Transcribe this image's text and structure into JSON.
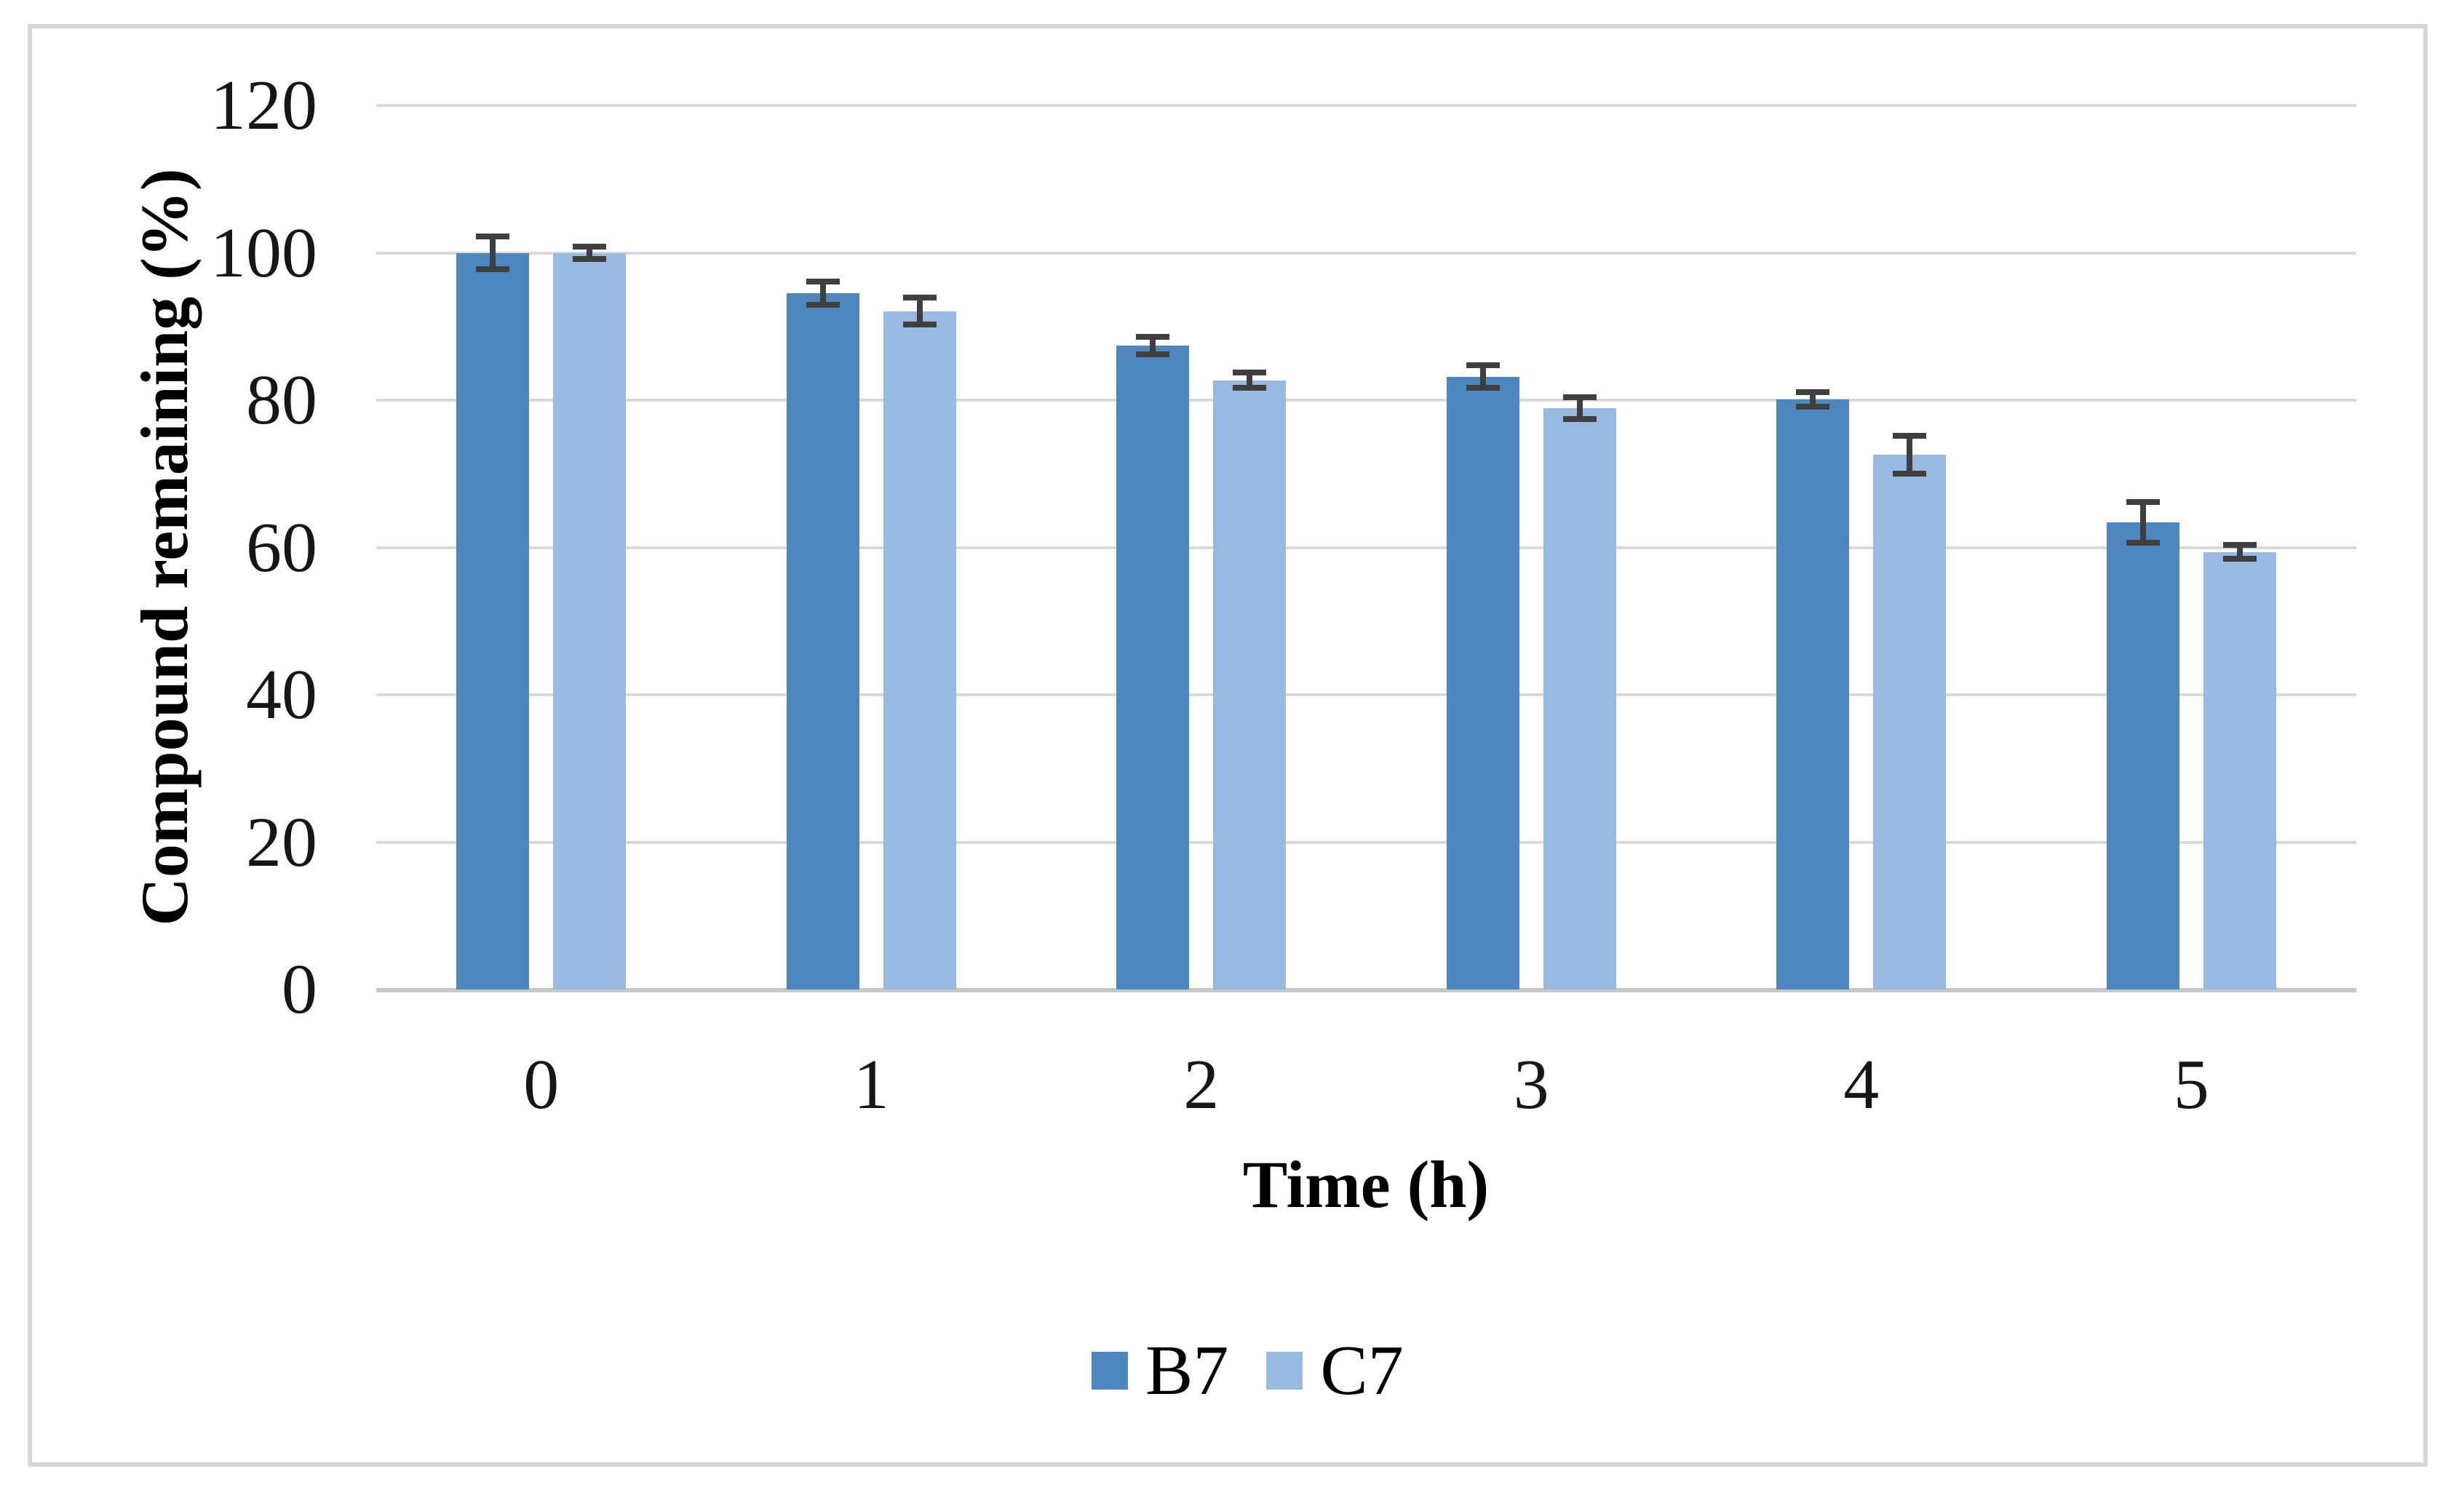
{
  "figure": {
    "background": "#ffffff",
    "border_color": "#d6d6d6"
  },
  "chart_data": {
    "type": "bar",
    "title": "",
    "categories": [
      "0",
      "1",
      "2",
      "3",
      "4",
      "5"
    ],
    "xlabel": "Time (h)",
    "ylabel": "Compound remaining (%)",
    "ylim": [
      0,
      120
    ],
    "yticks": [
      0,
      20,
      40,
      60,
      80,
      100,
      120
    ],
    "grid": true,
    "legend_position": "bottom-center",
    "series": [
      {
        "name": "B7",
        "color": "#4e86be",
        "values": [
          100,
          94.5,
          87.4,
          83.2,
          80.1,
          63.4
        ],
        "errors": [
          2.6,
          2.0,
          1.6,
          1.9,
          1.4,
          3.2
        ]
      },
      {
        "name": "C7",
        "color": "#98b9e2",
        "values": [
          100,
          92.1,
          82.7,
          78.9,
          72.6,
          59.4
        ],
        "errors": [
          1.2,
          2.2,
          1.4,
          1.9,
          3.0,
          1.3
        ]
      }
    ],
    "error_bar_color": "#3f3f3f",
    "gridline_color": "#d9d9d9",
    "axis_line_color": "#c7c7c7",
    "tick_label_color": "#161616"
  }
}
